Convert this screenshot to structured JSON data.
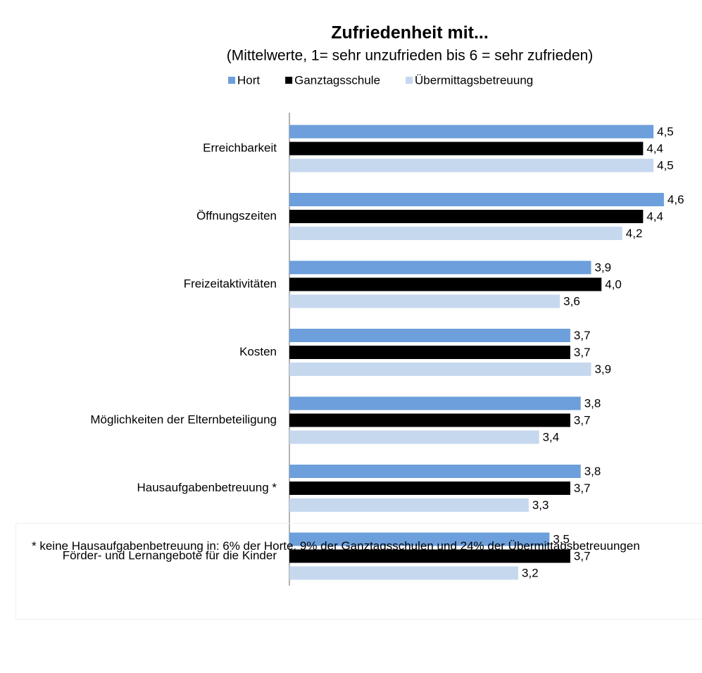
{
  "chart_data": {
    "type": "hbar",
    "title": "Zufriedenheit mit...",
    "subtitle": "(Mittelwerte, 1= sehr unzufrieden bis 6 = sehr zufrieden)",
    "categories": [
      "Erreichbarkeit",
      "Öffnungszeiten",
      "Freizeitaktivitäten",
      "Kosten",
      "Möglichkeiten der Elternbeteiligung",
      "Hausaufgabenbetreuung *",
      "Förder- und Lernangebote für die Kinder"
    ],
    "series": [
      {
        "name": "Hort",
        "color": "#6c9fdb",
        "values": [
          4.5,
          4.6,
          3.9,
          3.7,
          3.8,
          3.8,
          3.5
        ],
        "value_labels": [
          "4,5",
          "4,6",
          "3,9",
          "3,7",
          "3,8",
          "3,8",
          "3,5"
        ]
      },
      {
        "name": "Ganztagsschule",
        "color": "#000000",
        "values": [
          4.4,
          4.4,
          4.0,
          3.7,
          3.7,
          3.7,
          3.7
        ],
        "value_labels": [
          "4,4",
          "4,4",
          "4,0",
          "3,7",
          "3,7",
          "3,7",
          "3,7"
        ]
      },
      {
        "name": "Übermittagsbetreuung",
        "color": "#c5d8ee",
        "values": [
          4.5,
          4.2,
          3.6,
          3.9,
          3.4,
          3.3,
          3.2
        ],
        "value_labels": [
          "4,5",
          "4,2",
          "3,6",
          "3,9",
          "3,4",
          "3,3",
          "3,2"
        ]
      }
    ],
    "xlim": [
      1,
      5
    ],
    "legend": "top",
    "footnote": "* keine Hausaufgabenbetreuung in: 6% der Horte,  9% der Ganztagsschulen und  24% der Übermittagsbetreuungen"
  }
}
